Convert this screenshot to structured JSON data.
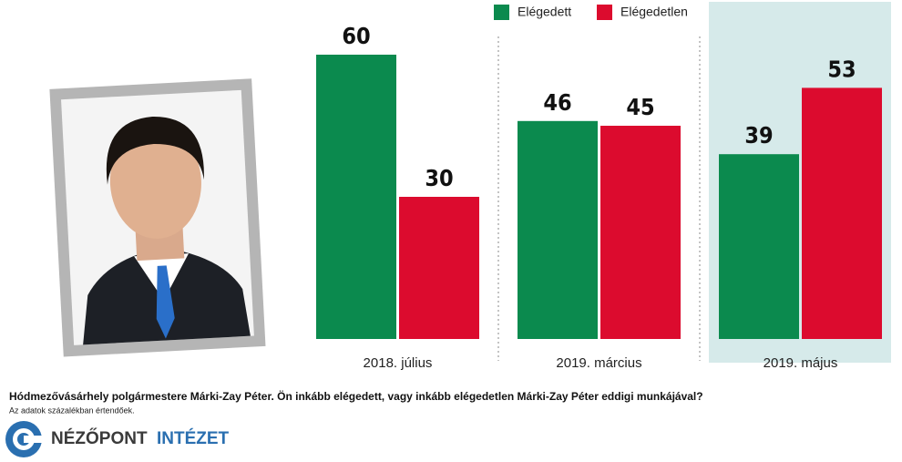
{
  "chart_data": {
    "type": "bar",
    "categories": [
      "2018. július",
      "2019. március",
      "2019. május"
    ],
    "series": [
      {
        "name": "Elégedett",
        "color": "#0b8a4e",
        "values": [
          60,
          46,
          39
        ]
      },
      {
        "name": "Elégedetlen",
        "color": "#dc0b2e",
        "values": [
          30,
          45,
          53
        ]
      }
    ]
  },
  "footer": {
    "question": "Hódmezővásárhely polgármestere Márki-Zay Péter. Ön inkább elégedett, vagy inkább elégedetlen Márki-Zay Péter eddigi munkájával?",
    "note": "Az adatok százalékban értendőek.",
    "logo_name": "NÉZŐPONT",
    "logo_suffix": "INTÉZET"
  }
}
